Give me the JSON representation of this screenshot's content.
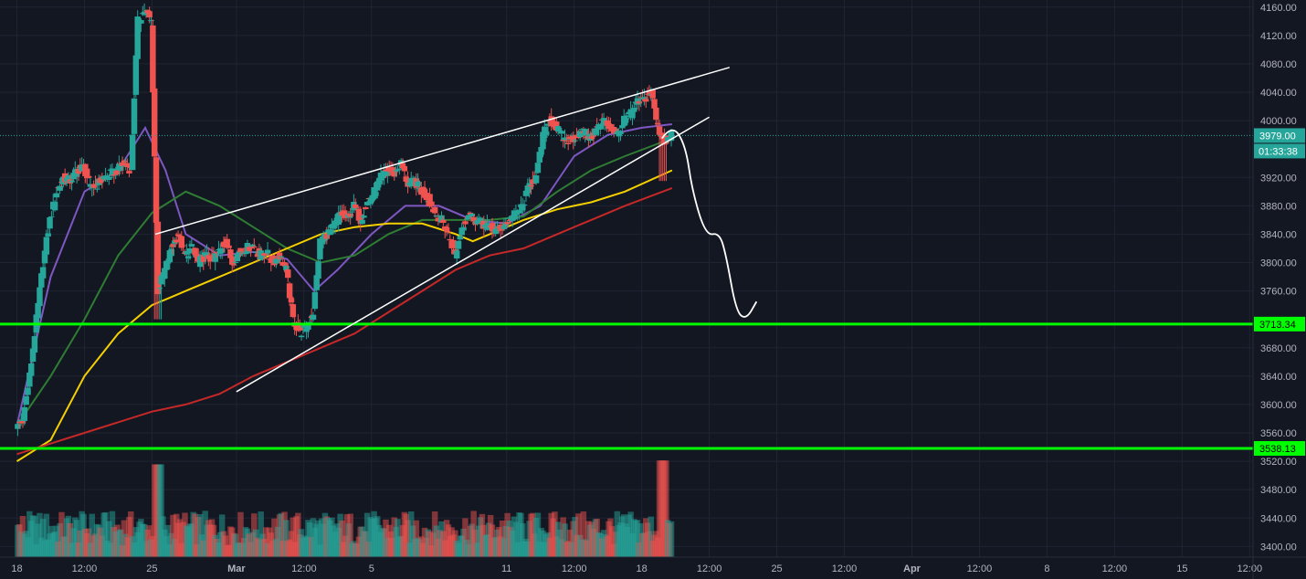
{
  "chart_data": {
    "type": "candlestick",
    "title": "",
    "y_axis": {
      "range": [
        3385,
        4170
      ],
      "ticks": [
        4160,
        4120,
        4080,
        4040,
        4000,
        3920,
        3880,
        3840,
        3800,
        3760,
        3680,
        3640,
        3600,
        3560,
        3520,
        3480,
        3440,
        3400
      ],
      "tick_labels": [
        "4160.00",
        "4120.00",
        "4080.00",
        "4040.00",
        "4000.00",
        "3920.00",
        "3880.00",
        "3840.00",
        "3800.00",
        "3760.00",
        "3680.00",
        "3640.00",
        "3600.00",
        "3560.00",
        "3520.00",
        "3480.00",
        "3440.00",
        "3400.00"
      ]
    },
    "x_axis": {
      "labels": [
        "18",
        "12:00",
        "25",
        "Mar",
        "12:00",
        "5",
        "11",
        "12:00",
        "18",
        "12:00",
        "25",
        "12:00",
        "Apr",
        "12:00",
        "8",
        "12:00",
        "15",
        "12:00"
      ],
      "label_positions_day": [
        0,
        2,
        4,
        6.5,
        8.5,
        10.5,
        14.5,
        16.5,
        18.5,
        20.5,
        22.5,
        24.5,
        26.5,
        28.5,
        30.5,
        32.5,
        34.5,
        36.5
      ],
      "range_day": [
        -0.5,
        36.6
      ]
    },
    "price_tag": {
      "value": 3979,
      "label": "3979.00",
      "countdown": "01:33:38",
      "color": "#26a69a"
    },
    "horizontal_levels": [
      {
        "value": 3713.34,
        "label": "3713.34",
        "color": "#00ff00"
      },
      {
        "value": 3538.13,
        "label": "3538.13",
        "color": "#00ff00"
      }
    ],
    "price_path_day": [
      [
        0,
        3570
      ],
      [
        0.2,
        3580
      ],
      [
        0.4,
        3640
      ],
      [
        0.6,
        3720
      ],
      [
        0.8,
        3800
      ],
      [
        1.0,
        3860
      ],
      [
        1.2,
        3900
      ],
      [
        1.4,
        3920
      ],
      [
        1.6,
        3915
      ],
      [
        1.8,
        3930
      ],
      [
        2.0,
        3935
      ],
      [
        2.2,
        3905
      ],
      [
        2.4,
        3910
      ],
      [
        2.6,
        3920
      ],
      [
        2.8,
        3925
      ],
      [
        3.0,
        3930
      ],
      [
        3.2,
        3940
      ],
      [
        3.4,
        3930
      ],
      [
        3.6,
        4140
      ],
      [
        3.8,
        4155
      ],
      [
        4.0,
        4140
      ],
      [
        4.2,
        3760
      ],
      [
        4.4,
        3790
      ],
      [
        4.6,
        3820
      ],
      [
        4.8,
        3840
      ],
      [
        5.0,
        3810
      ],
      [
        5.2,
        3820
      ],
      [
        5.4,
        3800
      ],
      [
        5.6,
        3810
      ],
      [
        5.8,
        3805
      ],
      [
        6.0,
        3815
      ],
      [
        6.2,
        3830
      ],
      [
        6.4,
        3800
      ],
      [
        6.6,
        3815
      ],
      [
        6.8,
        3820
      ],
      [
        7.0,
        3825
      ],
      [
        7.2,
        3810
      ],
      [
        7.4,
        3815
      ],
      [
        7.6,
        3800
      ],
      [
        7.8,
        3810
      ],
      [
        8.0,
        3790
      ],
      [
        8.2,
        3720
      ],
      [
        8.4,
        3700
      ],
      [
        8.6,
        3710
      ],
      [
        8.8,
        3730
      ],
      [
        9.0,
        3830
      ],
      [
        9.2,
        3840
      ],
      [
        9.4,
        3850
      ],
      [
        9.6,
        3870
      ],
      [
        9.8,
        3860
      ],
      [
        10.0,
        3880
      ],
      [
        10.2,
        3860
      ],
      [
        10.4,
        3885
      ],
      [
        10.6,
        3900
      ],
      [
        10.8,
        3920
      ],
      [
        11.0,
        3930
      ],
      [
        11.2,
        3925
      ],
      [
        11.4,
        3940
      ],
      [
        11.6,
        3910
      ],
      [
        11.8,
        3915
      ],
      [
        12.0,
        3900
      ],
      [
        12.2,
        3890
      ],
      [
        12.4,
        3870
      ],
      [
        12.6,
        3860
      ],
      [
        12.8,
        3840
      ],
      [
        13.0,
        3810
      ],
      [
        13.2,
        3850
      ],
      [
        13.4,
        3870
      ],
      [
        13.6,
        3860
      ],
      [
        13.8,
        3855
      ],
      [
        14.0,
        3850
      ],
      [
        14.2,
        3845
      ],
      [
        14.4,
        3850
      ],
      [
        14.6,
        3860
      ],
      [
        14.8,
        3870
      ],
      [
        15.0,
        3880
      ],
      [
        15.2,
        3910
      ],
      [
        15.4,
        3920
      ],
      [
        15.6,
        3980
      ],
      [
        15.8,
        4000
      ],
      [
        16.0,
        3990
      ],
      [
        16.2,
        3975
      ],
      [
        16.4,
        3970
      ],
      [
        16.6,
        3980
      ],
      [
        16.8,
        3985
      ],
      [
        17.0,
        3975
      ],
      [
        17.2,
        3990
      ],
      [
        17.4,
        4000
      ],
      [
        17.6,
        3990
      ],
      [
        17.8,
        3980
      ],
      [
        18.0,
        4000
      ],
      [
        18.2,
        4010
      ],
      [
        18.4,
        4025
      ],
      [
        18.6,
        4030
      ],
      [
        18.8,
        4040
      ],
      [
        19.0,
        3990
      ],
      [
        19.2,
        3970
      ],
      [
        19.4,
        3979
      ]
    ],
    "volume_max": 520,
    "moving_averages": [
      {
        "color": "#7e57c2",
        "points": [
          [
            0,
            3570
          ],
          [
            1,
            3780
          ],
          [
            2,
            3900
          ],
          [
            3,
            3930
          ],
          [
            3.8,
            3990
          ],
          [
            4.4,
            3930
          ],
          [
            5,
            3840
          ],
          [
            6,
            3810
          ],
          [
            7,
            3815
          ],
          [
            8,
            3805
          ],
          [
            8.8,
            3760
          ],
          [
            9.5,
            3790
          ],
          [
            10.5,
            3840
          ],
          [
            11.5,
            3880
          ],
          [
            12.5,
            3880
          ],
          [
            13.5,
            3860
          ],
          [
            14.5,
            3855
          ],
          [
            15.5,
            3880
          ],
          [
            16.5,
            3950
          ],
          [
            17.5,
            3980
          ],
          [
            18.5,
            3990
          ],
          [
            19.4,
            3995
          ]
        ]
      },
      {
        "color": "#2e7d32",
        "points": [
          [
            0,
            3570
          ],
          [
            1,
            3640
          ],
          [
            2,
            3720
          ],
          [
            3,
            3810
          ],
          [
            4,
            3870
          ],
          [
            5,
            3900
          ],
          [
            6,
            3880
          ],
          [
            7,
            3850
          ],
          [
            8,
            3820
          ],
          [
            9,
            3800
          ],
          [
            10,
            3810
          ],
          [
            11,
            3840
          ],
          [
            12,
            3860
          ],
          [
            13,
            3860
          ],
          [
            14,
            3860
          ],
          [
            15,
            3865
          ],
          [
            16,
            3900
          ],
          [
            17,
            3930
          ],
          [
            18,
            3950
          ],
          [
            19.4,
            3975
          ]
        ]
      },
      {
        "color": "#f5d000",
        "points": [
          [
            0,
            3520
          ],
          [
            1,
            3550
          ],
          [
            2,
            3640
          ],
          [
            3,
            3700
          ],
          [
            4,
            3740
          ],
          [
            4.5,
            3750
          ],
          [
            5,
            3760
          ],
          [
            6,
            3780
          ],
          [
            7,
            3800
          ],
          [
            8,
            3820
          ],
          [
            9,
            3840
          ],
          [
            10,
            3850
          ],
          [
            11,
            3855
          ],
          [
            12,
            3855
          ],
          [
            13,
            3840
          ],
          [
            13.5,
            3830
          ],
          [
            14,
            3840
          ],
          [
            15,
            3860
          ],
          [
            16,
            3875
          ],
          [
            17,
            3885
          ],
          [
            18,
            3900
          ],
          [
            19.4,
            3930
          ]
        ]
      },
      {
        "color": "#c62828",
        "points": [
          [
            0,
            3530
          ],
          [
            2,
            3560
          ],
          [
            4,
            3590
          ],
          [
            5,
            3600
          ],
          [
            6,
            3615
          ],
          [
            7,
            3640
          ],
          [
            8,
            3660
          ],
          [
            9,
            3680
          ],
          [
            10,
            3700
          ],
          [
            11,
            3730
          ],
          [
            12,
            3760
          ],
          [
            13,
            3790
          ],
          [
            14,
            3810
          ],
          [
            15,
            3820
          ],
          [
            16,
            3840
          ],
          [
            17,
            3860
          ],
          [
            18,
            3880
          ],
          [
            19.4,
            3905
          ]
        ]
      }
    ],
    "trend_lines": [
      {
        "from": [
          4.1,
          3840
        ],
        "to": [
          21.1,
          4075
        ]
      },
      {
        "from": [
          6.5,
          3618
        ],
        "to": [
          20.5,
          4005
        ]
      }
    ],
    "projection_path": [
      [
        19.1,
        3975
      ],
      [
        19.4,
        3995
      ],
      [
        19.8,
        3965
      ],
      [
        20.0,
        3900
      ],
      [
        20.4,
        3838
      ],
      [
        20.8,
        3842
      ],
      [
        21.0,
        3810
      ],
      [
        21.3,
        3730
      ],
      [
        21.6,
        3720
      ],
      [
        21.9,
        3745
      ]
    ],
    "grid": true,
    "legend": "none"
  }
}
